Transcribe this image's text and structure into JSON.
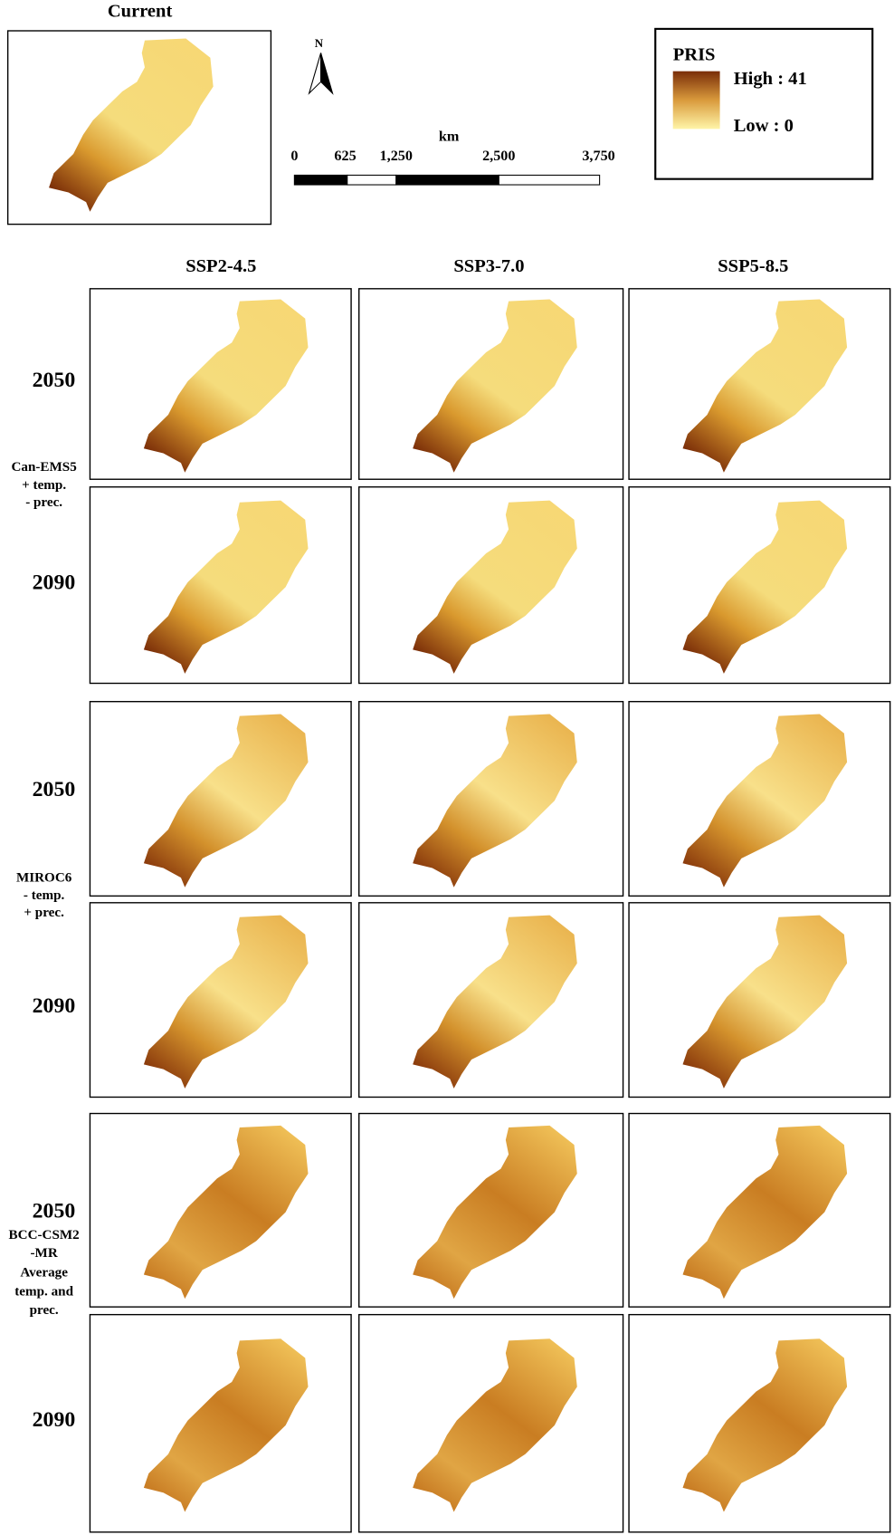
{
  "header": {
    "title": "Current"
  },
  "north_arrow": {
    "label": "N"
  },
  "scale_bar": {
    "unit": "km",
    "labels": [
      "0",
      "625",
      "1,250",
      "2,500",
      "3,750"
    ]
  },
  "legend": {
    "title": "PRIS",
    "high": "High : 41",
    "low": "Low : 0"
  },
  "columns": [
    "SSP2-4.5",
    "SSP3-7.0",
    "SSP5-8.5"
  ],
  "groups": [
    {
      "model": [
        "Can-EMS5",
        "+ temp.",
        "- prec."
      ],
      "rows": [
        "2050",
        "2090"
      ]
    },
    {
      "model": [
        "MIROC6",
        "- temp.",
        "+ prec."
      ],
      "rows": [
        "2050",
        "2090"
      ]
    },
    {
      "model": [
        "BCC-CSM2",
        "-MR",
        "Average",
        "temp. and",
        "prec."
      ],
      "rows": [
        "2050",
        "2090"
      ]
    }
  ]
}
